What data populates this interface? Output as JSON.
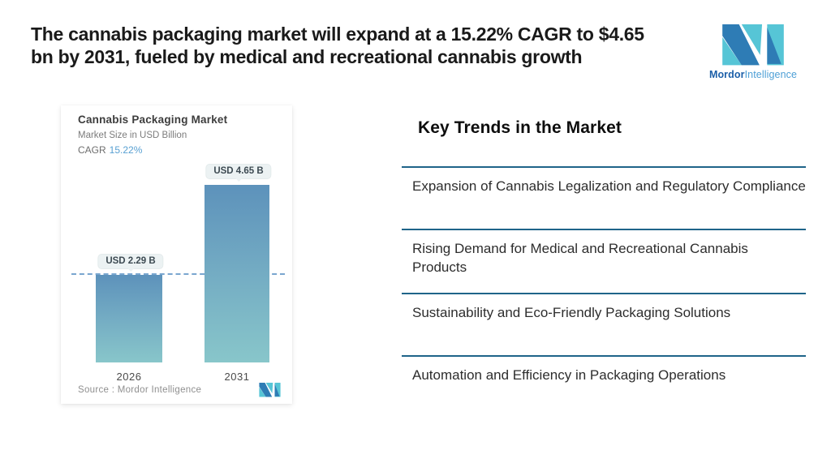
{
  "header": {
    "headline_line1": "The cannabis packaging market will expand at a 15.22% CAGR to $4.65",
    "headline_line2": "bn by 2031, fueled by medical and recreational cannabis growth",
    "brand": {
      "name_bold": "Mordor",
      "name_light": "Intelligence"
    }
  },
  "chart_card": {
    "title": "Cannabis Packaging Market",
    "subtitle": "Market Size in USD Billion",
    "cagr_label": "CAGR",
    "cagr_value": "15.22%",
    "source_text": "Source :  Mordor Intelligence"
  },
  "chart_data": {
    "type": "bar",
    "title": "Cannabis Packaging Market",
    "subtitle": "Market Size in USD Billion",
    "categories": [
      "2026",
      "2031"
    ],
    "values": [
      2.29,
      4.65
    ],
    "value_labels": [
      "USD 2.29 B",
      "USD 4.65 B"
    ],
    "cagr_percent": 15.22,
    "ylabel": "Market Size in USD Billion",
    "ylim": [
      0,
      4.65
    ],
    "grid": false,
    "legend": false,
    "annotations": [
      {
        "type": "dashed-reference-line",
        "y": 2.29,
        "note": "horizontal dashed line at 2026 bar top spanning the plot"
      }
    ],
    "source": "Source :  Mordor Intelligence"
  },
  "trends": {
    "heading": "Key Trends in the Market",
    "items": [
      {
        "label": "Expansion of Cannabis Legalization and Regulatory Compliance"
      },
      {
        "label": "Rising Demand for Medical and Recreational Cannabis Products"
      },
      {
        "label": "Sustainability and Eco-Friendly Packaging Solutions"
      },
      {
        "label": "Automation and Efficiency in Packaging Operations"
      }
    ]
  },
  "colors": {
    "accent_blue": "#2e7cb5",
    "accent_teal": "#56c5d6",
    "bar_gradient_top": "#5d92bb",
    "bar_gradient_bottom": "#88c6ca",
    "cagr_value_blue": "#58a0d2",
    "separator_dark_teal": "#1f6489",
    "dashed_line_blue": "#7aa6cf",
    "headline_text": "#1a1a1a"
  }
}
